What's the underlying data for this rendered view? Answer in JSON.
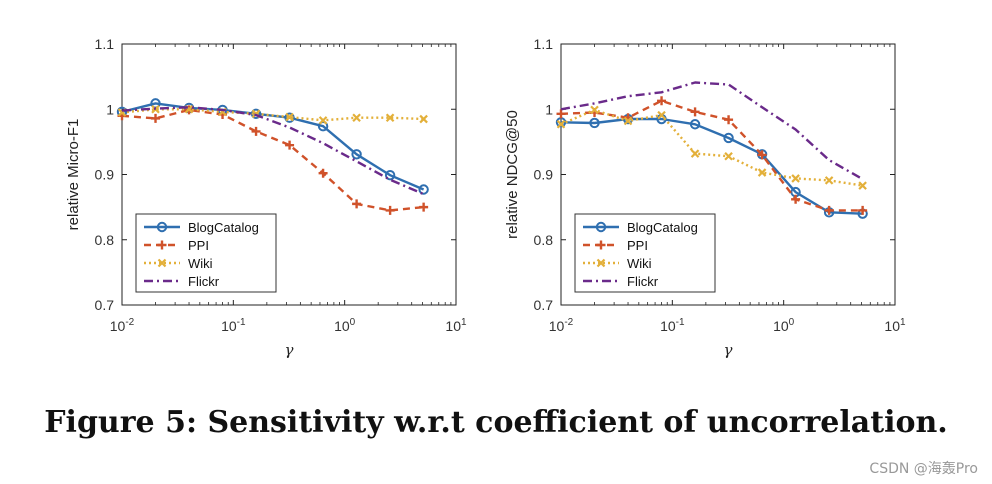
{
  "caption": "Figure 5: Sensitivity w.r.t coefficient of uncorrelation.",
  "watermark": "CSDN @海轰Pro",
  "styles": {
    "BlogCatalog": {
      "color": "#2f6fb0",
      "dash": "",
      "marker": "circle"
    },
    "PPI": {
      "color": "#d0522a",
      "dash": "7,5",
      "marker": "plus"
    },
    "Wiki": {
      "color": "#e3b03a",
      "dash": "2,3",
      "marker": "x"
    },
    "Flickr": {
      "color": "#6a2a8a",
      "dash": "9,4,2,4",
      "marker": "none"
    }
  },
  "chart_data": [
    {
      "type": "line",
      "xscale": "log",
      "xlim": [
        0.01,
        10
      ],
      "ylim": [
        0.7,
        1.1
      ],
      "xlabel": "γ",
      "ylabel": "relative Micro-F1",
      "xticks": [
        {
          "base": "10",
          "exp": "-2"
        },
        {
          "base": "10",
          "exp": "-1"
        },
        {
          "base": "10",
          "exp": "0"
        },
        {
          "base": "10",
          "exp": "1"
        }
      ],
      "yticks": [
        "0.7",
        "0.8",
        "0.9",
        "1",
        "1.1"
      ],
      "x": [
        0.01,
        0.02,
        0.04,
        0.08,
        0.16,
        0.32,
        0.64,
        1.28,
        2.56,
        5.12
      ],
      "series": [
        {
          "name": "BlogCatalog",
          "values": [
            0.996,
            1.009,
            1.002,
            0.999,
            0.993,
            0.987,
            0.974,
            0.931,
            0.899,
            0.877
          ]
        },
        {
          "name": "PPI",
          "values": [
            0.99,
            0.986,
            0.999,
            0.992,
            0.966,
            0.945,
            0.902,
            0.855,
            0.845,
            0.85
          ]
        },
        {
          "name": "Wiki",
          "values": [
            0.995,
            1.0,
            1.0,
            0.996,
            0.993,
            0.988,
            0.983,
            0.987,
            0.987,
            0.985
          ]
        },
        {
          "name": "Flickr",
          "values": [
            0.998,
            1.001,
            1.003,
            0.999,
            0.991,
            0.972,
            0.948,
            0.92,
            0.892,
            0.87
          ]
        }
      ],
      "legend": [
        "BlogCatalog",
        "PPI",
        "Wiki",
        "Flickr"
      ],
      "legend_position": "bottom-left"
    },
    {
      "type": "line",
      "xscale": "log",
      "xlim": [
        0.01,
        10
      ],
      "ylim": [
        0.7,
        1.1
      ],
      "xlabel": "γ",
      "ylabel": "relative NDCG@50",
      "xticks": [
        {
          "base": "10",
          "exp": "-2"
        },
        {
          "base": "10",
          "exp": "-1"
        },
        {
          "base": "10",
          "exp": "0"
        },
        {
          "base": "10",
          "exp": "1"
        }
      ],
      "yticks": [
        "0.7",
        "0.8",
        "0.9",
        "1",
        "1.1"
      ],
      "x": [
        0.01,
        0.02,
        0.04,
        0.08,
        0.16,
        0.32,
        0.64,
        1.28,
        2.56,
        5.12
      ],
      "series": [
        {
          "name": "BlogCatalog",
          "values": [
            0.98,
            0.979,
            0.985,
            0.985,
            0.977,
            0.956,
            0.931,
            0.873,
            0.842,
            0.84
          ]
        },
        {
          "name": "PPI",
          "values": [
            0.993,
            0.995,
            0.987,
            1.013,
            0.996,
            0.984,
            0.93,
            0.862,
            0.845,
            0.845
          ]
        },
        {
          "name": "Wiki",
          "values": [
            0.977,
            0.999,
            0.982,
            0.991,
            0.932,
            0.928,
            0.903,
            0.894,
            0.891,
            0.883
          ]
        },
        {
          "name": "Flickr",
          "values": [
            1.0,
            1.009,
            1.02,
            1.026,
            1.041,
            1.038,
            1.003,
            0.969,
            0.922,
            0.893
          ]
        }
      ],
      "legend": [
        "BlogCatalog",
        "PPI",
        "Wiki",
        "Flickr"
      ],
      "legend_position": "bottom-left"
    }
  ]
}
